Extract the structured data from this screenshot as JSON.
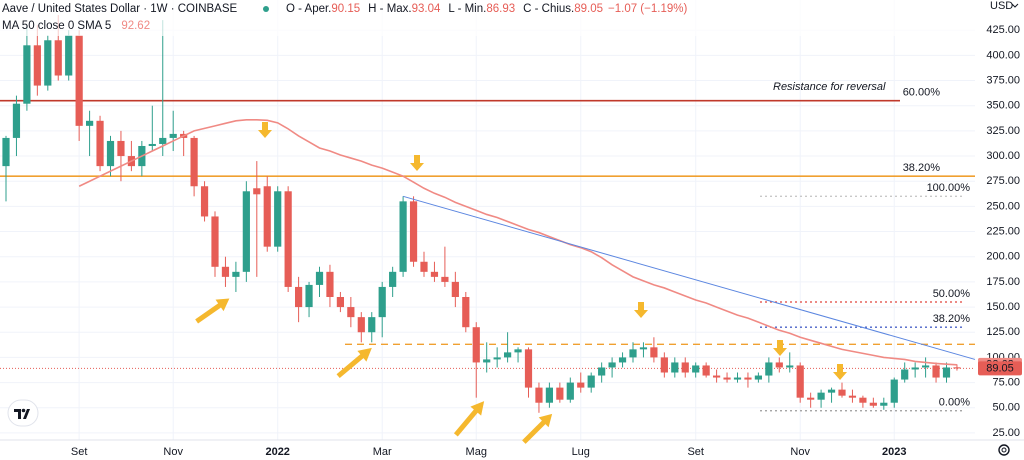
{
  "chart_data": {
    "type": "candlestick",
    "title": "Aave / United States Dollar · 1W · COINBASE",
    "ohlc_labels": [
      "O - Aper.",
      "H - Max.",
      "L - Min.",
      "C - Chius."
    ],
    "change_label": "−1.07 (−1.19%)",
    "currency": "USD",
    "up_color": "#2e9f8c",
    "down_color": "#e65d56",
    "categories": [
      null,
      null,
      null,
      null,
      null,
      null,
      null,
      "Set",
      null,
      null,
      null,
      null,
      null,
      null,
      null,
      null,
      "Nov",
      null,
      null,
      null,
      null,
      null,
      null,
      null,
      null,
      null,
      "2022",
      null,
      null,
      null,
      null,
      null,
      null,
      null,
      null,
      null,
      "Mar",
      null,
      null,
      null,
      null,
      null,
      null,
      null,
      null,
      "Mag",
      null,
      null,
      null,
      null,
      null,
      null,
      null,
      null,
      null,
      "Lug",
      null,
      null,
      null,
      null,
      null,
      null,
      null,
      null,
      null,
      null,
      "Set",
      null,
      null,
      null,
      null,
      null,
      null,
      null,
      null,
      null,
      "Nov",
      null,
      null,
      null,
      null,
      null,
      null,
      null,
      null,
      "2023",
      null,
      null,
      null,
      null,
      null,
      null
    ],
    "open": [
      290,
      318,
      352,
      410,
      370,
      415,
      380,
      420,
      330,
      335,
      290,
      315,
      300,
      290,
      310,
      312,
      318,
      322,
      318,
      270,
      240,
      190,
      180,
      185,
      268,
      270,
      210,
      265,
      170,
      150,
      172,
      185,
      160,
      150,
      140,
      125,
      140,
      170,
      185,
      255,
      195,
      185,
      180,
      175,
      160,
      130,
      95,
      98,
      100,
      105,
      108,
      70,
      55,
      70,
      58,
      75,
      70,
      82,
      90,
      95,
      100,
      108,
      110,
      100,
      85,
      95,
      85,
      92,
      82,
      80,
      78,
      80,
      78,
      82,
      95,
      90,
      92,
      60,
      58,
      65,
      68,
      62,
      60,
      55,
      52,
      55,
      78,
      88,
      90,
      92,
      80,
      90.15
    ],
    "high": [
      320,
      360,
      430,
      430,
      420,
      440,
      425,
      425,
      345,
      340,
      320,
      325,
      315,
      315,
      350,
      435,
      345,
      325,
      320,
      275,
      245,
      200,
      195,
      275,
      295,
      280,
      270,
      270,
      180,
      175,
      190,
      192,
      165,
      160,
      145,
      145,
      175,
      190,
      260,
      260,
      205,
      195,
      210,
      185,
      165,
      135,
      115,
      110,
      125,
      110,
      110,
      75,
      75,
      75,
      80,
      85,
      85,
      95,
      100,
      105,
      115,
      115,
      120,
      105,
      100,
      100,
      95,
      95,
      88,
      85,
      85,
      85,
      85,
      100,
      100,
      105,
      95,
      65,
      68,
      70,
      75,
      68,
      62,
      60,
      60,
      80,
      95,
      95,
      100,
      95,
      95,
      93.04
    ],
    "low": [
      255,
      300,
      345,
      360,
      365,
      375,
      375,
      315,
      300,
      285,
      280,
      275,
      285,
      280,
      305,
      300,
      305,
      300,
      260,
      235,
      180,
      170,
      165,
      175,
      180,
      205,
      205,
      165,
      135,
      140,
      160,
      150,
      145,
      130,
      115,
      115,
      120,
      160,
      180,
      190,
      180,
      175,
      170,
      150,
      125,
      60,
      85,
      90,
      95,
      95,
      60,
      45,
      50,
      55,
      55,
      65,
      65,
      75,
      80,
      90,
      95,
      100,
      95,
      80,
      80,
      80,
      80,
      80,
      75,
      75,
      75,
      70,
      75,
      75,
      85,
      85,
      55,
      50,
      50,
      55,
      60,
      55,
      50,
      50,
      48,
      50,
      75,
      80,
      80,
      75,
      75,
      86.93
    ],
    "close": [
      318,
      352,
      410,
      370,
      415,
      380,
      420,
      330,
      335,
      290,
      315,
      300,
      290,
      310,
      312,
      318,
      322,
      318,
      270,
      240,
      190,
      180,
      185,
      265,
      262,
      210,
      265,
      170,
      150,
      172,
      185,
      160,
      150,
      140,
      125,
      140,
      170,
      185,
      255,
      195,
      185,
      180,
      175,
      160,
      130,
      95,
      98,
      100,
      105,
      108,
      70,
      55,
      70,
      58,
      75,
      70,
      82,
      90,
      95,
      100,
      108,
      110,
      100,
      85,
      95,
      85,
      92,
      82,
      80,
      78,
      80,
      78,
      82,
      95,
      90,
      92,
      60,
      58,
      65,
      68,
      62,
      60,
      55,
      52,
      55,
      78,
      88,
      90,
      92,
      80,
      90,
      89.05
    ],
    "ma": {
      "name": "MA 50 close 0 SMA 5",
      "color": "#f08a84",
      "values": [
        null,
        null,
        null,
        null,
        null,
        null,
        null,
        270,
        275,
        280,
        285,
        290,
        295,
        300,
        305,
        310,
        315,
        320,
        325,
        327.5,
        330,
        332.5,
        335,
        336,
        336,
        335.5,
        333,
        327,
        320,
        314,
        308,
        305,
        301,
        298,
        295,
        291,
        288,
        284,
        280,
        274,
        268,
        263,
        259,
        254,
        250,
        246,
        242,
        239,
        235,
        231,
        227,
        224,
        220,
        216,
        212,
        209,
        205,
        199,
        192,
        186,
        180,
        176,
        172,
        169,
        165,
        161,
        157,
        154,
        150,
        146,
        142,
        139,
        135,
        131,
        127,
        124,
        120,
        117,
        114,
        111,
        108,
        106,
        104,
        102,
        100,
        99,
        98,
        96,
        95,
        94,
        93.3,
        92.62
      ]
    },
    "levels": [
      {
        "value": 355,
        "label": "60.00%",
        "color": "#c0392b"
      },
      {
        "value": 280,
        "label": "38.20%",
        "color": "#f0a030"
      },
      {
        "value": 260,
        "label": "100.00%",
        "color": "#c8c8c8"
      },
      {
        "value": 155,
        "label": "50.00%",
        "color": "#e0443c"
      },
      {
        "value": 130,
        "label": "38.20%",
        "color": "#4a62c8"
      },
      {
        "value": 47,
        "label": "0.00%",
        "color": "#9a9a9a"
      },
      {
        "value": 113,
        "color": "#f0a030"
      }
    ],
    "trendline": {
      "color": "#5b86e0",
      "values": [
        260,
        98
      ]
    },
    "annotation": "Resistance for reversal",
    "ylim": [
      13,
      455
    ],
    "yticks": [
      {
        "value": 425,
        "label": "425.00"
      },
      {
        "value": 400,
        "label": "400.00"
      },
      {
        "value": 375,
        "label": "375.00"
      },
      {
        "value": 350,
        "label": "350.00"
      },
      {
        "value": 325,
        "label": "325.00"
      },
      {
        "value": 300,
        "label": "300.00"
      },
      {
        "value": 275,
        "label": "275.00"
      },
      {
        "value": 250,
        "label": "250.00"
      },
      {
        "value": 225,
        "label": "225.00"
      },
      {
        "value": 200,
        "label": "200.00"
      },
      {
        "value": 175,
        "label": "175.00"
      },
      {
        "value": 150,
        "label": "150.00"
      },
      {
        "value": 125,
        "label": "125.00"
      },
      {
        "value": 100,
        "label": "100.00"
      },
      {
        "value": 75,
        "label": "75.00"
      },
      {
        "value": 50,
        "label": "50.00"
      },
      {
        "value": 25,
        "label": "25.00"
      }
    ],
    "grid": true
  }
}
